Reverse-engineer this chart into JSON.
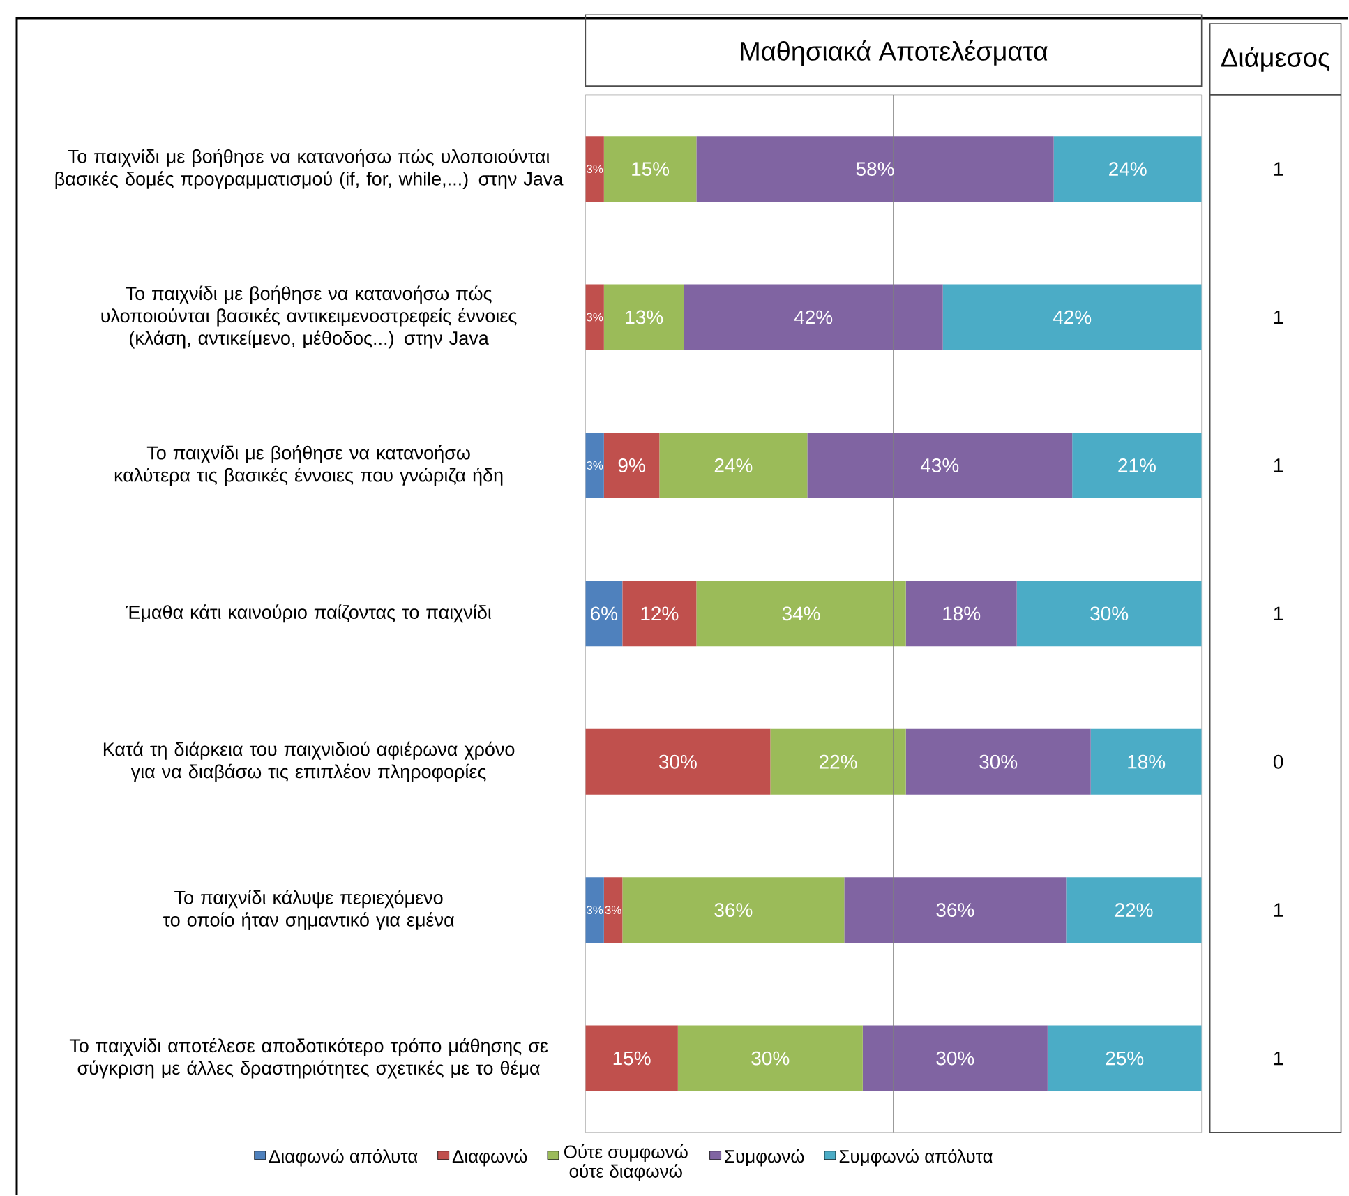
{
  "chart_data": [
    {
      "type": "bar",
      "orientation": "horizontal",
      "stacked": true,
      "title": "Μαθησιακά Αποτελέσματα",
      "categories": [
        "Το παιχνίδι με βοήθησε να κατανοήσω πώς υλοποιούνται βασικές δομές προγραμματισμού (if, for, while,...) στην Java",
        "Το παιχνίδι με βοήθησε να κατανοήσω πώς υλοποιούνται βασικές αντικειμενοστρεφείς έννοιες (κλάση, αντικείμενο, μέθοδος...) στην Java",
        "Το παιχνίδι με βοήθησε να κατανοήσω καλύτερα τις βασικές έννοιες που γνώριζα ήδη",
        "Έμαθα κάτι καινούριο παίζοντας το παιχνίδι",
        "Κατά τη διάρκεια του παιχνιδιού αφιέρωνα χρόνο για να διαβάσω τις επιπλέον πληροφορίες",
        "Το παιχνίδι κάλυψε περιεχόμενο το οποίο ήταν σημαντικό για εμένα",
        "Το παιχνίδι αποτέλεσε αποδοτικότερο τρόπο μάθησης σε σύγκριση με άλλες δραστηριότητες σχετικές με το θέμα"
      ],
      "series": [
        {
          "name": "Διαφωνώ απόλυτα",
          "color": "#4f81bd",
          "values": [
            0,
            0,
            3,
            6,
            0,
            3,
            0
          ],
          "value_labels": [
            null,
            null,
            "3%",
            "6%",
            null,
            "3%",
            null
          ]
        },
        {
          "name": "Διαφωνώ",
          "color": "#c0504d",
          "values": [
            3,
            3,
            9,
            12,
            30,
            3,
            15
          ],
          "value_labels": [
            "3%",
            "3%",
            "9%",
            "12%",
            "30%",
            "3%",
            "15%"
          ]
        },
        {
          "name": "Ούτε συμφωνώ ούτε διαφωνώ",
          "color": "#9bbb59",
          "values": [
            15,
            13,
            24,
            34,
            22,
            36,
            30
          ],
          "value_labels": [
            "15%",
            "13%",
            "24%",
            "34%",
            "22%",
            "36%",
            "30%"
          ]
        },
        {
          "name": "Συμφωνώ",
          "color": "#8064a2",
          "values": [
            58,
            42,
            43,
            18,
            30,
            36,
            30
          ],
          "value_labels": [
            "58%",
            "42%",
            "43%",
            "18%",
            "30%",
            "36%",
            "30%"
          ]
        },
        {
          "name": "Συμφωνώ απόλυτα",
          "color": "#4bacc6",
          "values": [
            24,
            42,
            21,
            30,
            18,
            22,
            25
          ],
          "value_labels": [
            "24%",
            "42%",
            "21%",
            "30%",
            "18%",
            "22%",
            "25%"
          ]
        }
      ],
      "xlim": [
        0,
        100
      ],
      "ref_lines": [
        {
          "axis": "x",
          "value": 50,
          "color": "#7f7f7f"
        }
      ],
      "tick_labels": "y",
      "legend": "bottom"
    },
    {
      "type": "other",
      "title": "Διάμεσος",
      "value_labels": [
        "1",
        "1",
        "1",
        "1",
        "0",
        "1",
        "1"
      ]
    }
  ]
}
